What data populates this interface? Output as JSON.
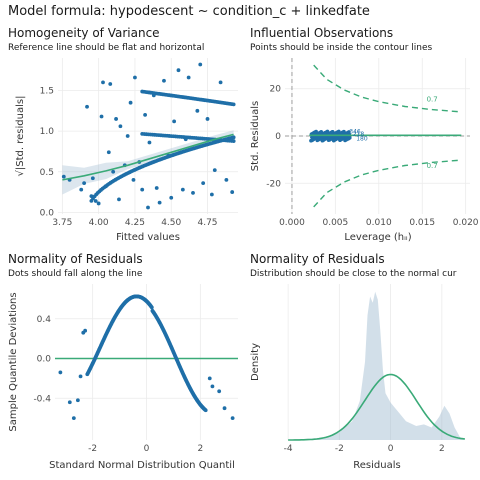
{
  "figure": {
    "title": "Model formula: hypodescent ~ condition_c + linkedfate"
  },
  "colors": {
    "point": "#1f6fa8",
    "line": "#3aaa78",
    "band": "#9bb7cf",
    "grid": "#ebebeb",
    "refline": "#9e9e9e"
  },
  "chart_data": [
    {
      "type": "scatter",
      "title": "Homogeneity of Variance",
      "subtitle": "Reference line should be flat and horizontal",
      "xlabel": "Fitted values",
      "ylabel": "√|Std. residuals|",
      "xlim": [
        3.72,
        4.96
      ],
      "ylim": [
        -0.02,
        1.9
      ],
      "xticks": [
        "3.75",
        "4.00",
        "4.25",
        "4.50",
        "4.75"
      ],
      "xtick_values": [
        3.75,
        4.0,
        4.25,
        4.5,
        4.75
      ],
      "yticks": [
        "0.0",
        "0.5",
        "1.0",
        "1.5"
      ],
      "ytick_values": [
        0,
        0.5,
        1.0,
        1.5
      ],
      "grid": true,
      "trend_x": [
        3.75,
        3.9,
        4.05,
        4.2,
        4.35,
        4.5,
        4.65,
        4.8,
        4.93
      ],
      "trend_y": [
        0.4,
        0.45,
        0.51,
        0.58,
        0.66,
        0.74,
        0.82,
        0.9,
        0.96
      ],
      "points": [
        [
          3.76,
          0.44
        ],
        [
          3.8,
          0.4
        ],
        [
          3.88,
          0.28
        ],
        [
          3.9,
          0.36
        ],
        [
          3.92,
          1.3
        ],
        [
          3.95,
          0.2
        ],
        [
          3.96,
          0.42
        ],
        [
          3.98,
          0.14
        ],
        [
          4.0,
          0.11
        ],
        [
          4.02,
          1.18
        ],
        [
          4.03,
          1.6
        ],
        [
          4.05,
          0.32
        ],
        [
          4.07,
          0.74
        ],
        [
          4.08,
          1.58
        ],
        [
          4.1,
          0.5
        ],
        [
          4.12,
          1.15
        ],
        [
          4.14,
          0.16
        ],
        [
          4.15,
          1.06
        ],
        [
          4.18,
          0.58
        ],
        [
          4.2,
          0.94
        ],
        [
          4.22,
          1.35
        ],
        [
          4.24,
          0.4
        ],
        [
          4.25,
          1.66
        ],
        [
          4.28,
          0.62
        ],
        [
          4.3,
          0.28
        ],
        [
          4.32,
          1.2
        ],
        [
          4.34,
          0.06
        ],
        [
          4.35,
          0.86
        ],
        [
          4.38,
          1.44
        ],
        [
          4.4,
          0.3
        ],
        [
          4.42,
          0.12
        ],
        [
          4.45,
          1.62
        ],
        [
          4.48,
          0.7
        ],
        [
          4.5,
          0.18
        ],
        [
          4.52,
          1.12
        ],
        [
          4.55,
          1.75
        ],
        [
          4.58,
          0.28
        ],
        [
          4.6,
          0.9
        ],
        [
          4.62,
          1.66
        ],
        [
          4.65,
          0.24
        ],
        [
          4.68,
          1.25
        ],
        [
          4.7,
          1.82
        ],
        [
          4.72,
          0.36
        ],
        [
          4.75,
          1.15
        ],
        [
          4.78,
          0.22
        ],
        [
          4.8,
          0.52
        ],
        [
          4.84,
          1.6
        ],
        [
          4.88,
          0.4
        ],
        [
          4.92,
          0.25
        ]
      ]
    },
    {
      "type": "scatter",
      "title": "Influential Observations",
      "subtitle": "Points should be inside the contour lines",
      "xlabel": "Leverage (hᵢᵢ)",
      "ylabel": "Std. Residuals",
      "xlim": [
        -0.0008,
        0.0205
      ],
      "ylim": [
        -33,
        33
      ],
      "xticks": [
        "0.000",
        "0.005",
        "0.010",
        "0.015",
        "0.020"
      ],
      "xtick_values": [
        0,
        0.005,
        0.01,
        0.015,
        0.02
      ],
      "yticks": [
        "-20",
        "0",
        "20"
      ],
      "ytick_values": [
        -20,
        0,
        20
      ],
      "grid": true,
      "contour_label": "0.7",
      "point_labels": [
        "346",
        "218",
        "180"
      ],
      "contour_upper": [
        [
          0.0025,
          30
        ],
        [
          0.004,
          24
        ],
        [
          0.006,
          19.5
        ],
        [
          0.008,
          16.5
        ],
        [
          0.01,
          14.5
        ],
        [
          0.013,
          12.5
        ],
        [
          0.016,
          11.2
        ],
        [
          0.0195,
          10.2
        ]
      ],
      "contour_lower": [
        [
          0.0025,
          -30
        ],
        [
          0.004,
          -24
        ],
        [
          0.006,
          -19.5
        ],
        [
          0.008,
          -16.5
        ],
        [
          0.01,
          -14.5
        ],
        [
          0.013,
          -12.5
        ],
        [
          0.016,
          -11.2
        ],
        [
          0.0195,
          -10.2
        ]
      ],
      "loess_y": 0.3
    },
    {
      "type": "scatter",
      "title": "Normality of Residuals",
      "subtitle": "Dots should fall along the line",
      "xlabel": "Standard Normal Distribution Quantil",
      "ylabel": "Sample Quantile Deviations",
      "xlim": [
        -3.4,
        3.4
      ],
      "ylim": [
        -0.82,
        0.75
      ],
      "xticks": [
        "-2",
        "0",
        "2"
      ],
      "xtick_values": [
        -2,
        0,
        2
      ],
      "yticks": [
        "-0.4",
        "0.0",
        "0.4"
      ],
      "ytick_values": [
        -0.4,
        0.0,
        0.4
      ],
      "grid": true,
      "outliers": [
        [
          -3.2,
          -0.14
        ],
        [
          -2.85,
          -0.44
        ],
        [
          -2.7,
          -0.6
        ],
        [
          -2.55,
          -0.42
        ],
        [
          -2.45,
          -0.18
        ],
        [
          -2.35,
          0.26
        ],
        [
          -2.28,
          0.28
        ],
        [
          2.35,
          -0.2
        ],
        [
          2.45,
          -0.28
        ],
        [
          2.7,
          -0.33
        ],
        [
          2.9,
          -0.5
        ],
        [
          3.2,
          -0.6
        ]
      ]
    },
    {
      "type": "area",
      "title": "Normality of Residuals",
      "subtitle": "Distribution should be close to the normal cur",
      "xlabel": "Residuals",
      "ylabel": "Density",
      "xlim": [
        -4.2,
        3.1
      ],
      "ylim": [
        0,
        1.0
      ],
      "xticks": [
        "-4",
        "-2",
        "0",
        "2"
      ],
      "xtick_values": [
        -4,
        -2,
        0,
        2
      ],
      "grid": true,
      "density_x": [
        -4.0,
        -3.5,
        -3.0,
        -2.5,
        -2.0,
        -1.5,
        -1.2,
        -1.0,
        -0.9,
        -0.8,
        -0.7,
        -0.6,
        -0.5,
        -0.4,
        -0.3,
        -0.2,
        0.0,
        0.3,
        0.6,
        1.0,
        1.3,
        1.6,
        1.9,
        2.1,
        2.3,
        2.5,
        2.7,
        2.9
      ],
      "density_y": [
        0.0,
        0.005,
        0.01,
        0.02,
        0.05,
        0.12,
        0.25,
        0.5,
        0.8,
        0.92,
        0.88,
        0.95,
        0.9,
        0.7,
        0.45,
        0.3,
        0.24,
        0.18,
        0.12,
        0.09,
        0.1,
        0.08,
        0.15,
        0.22,
        0.17,
        0.08,
        0.02,
        0.0
      ],
      "normal_mean": 0,
      "normal_sd": 1,
      "normal_peak": 0.42
    }
  ]
}
